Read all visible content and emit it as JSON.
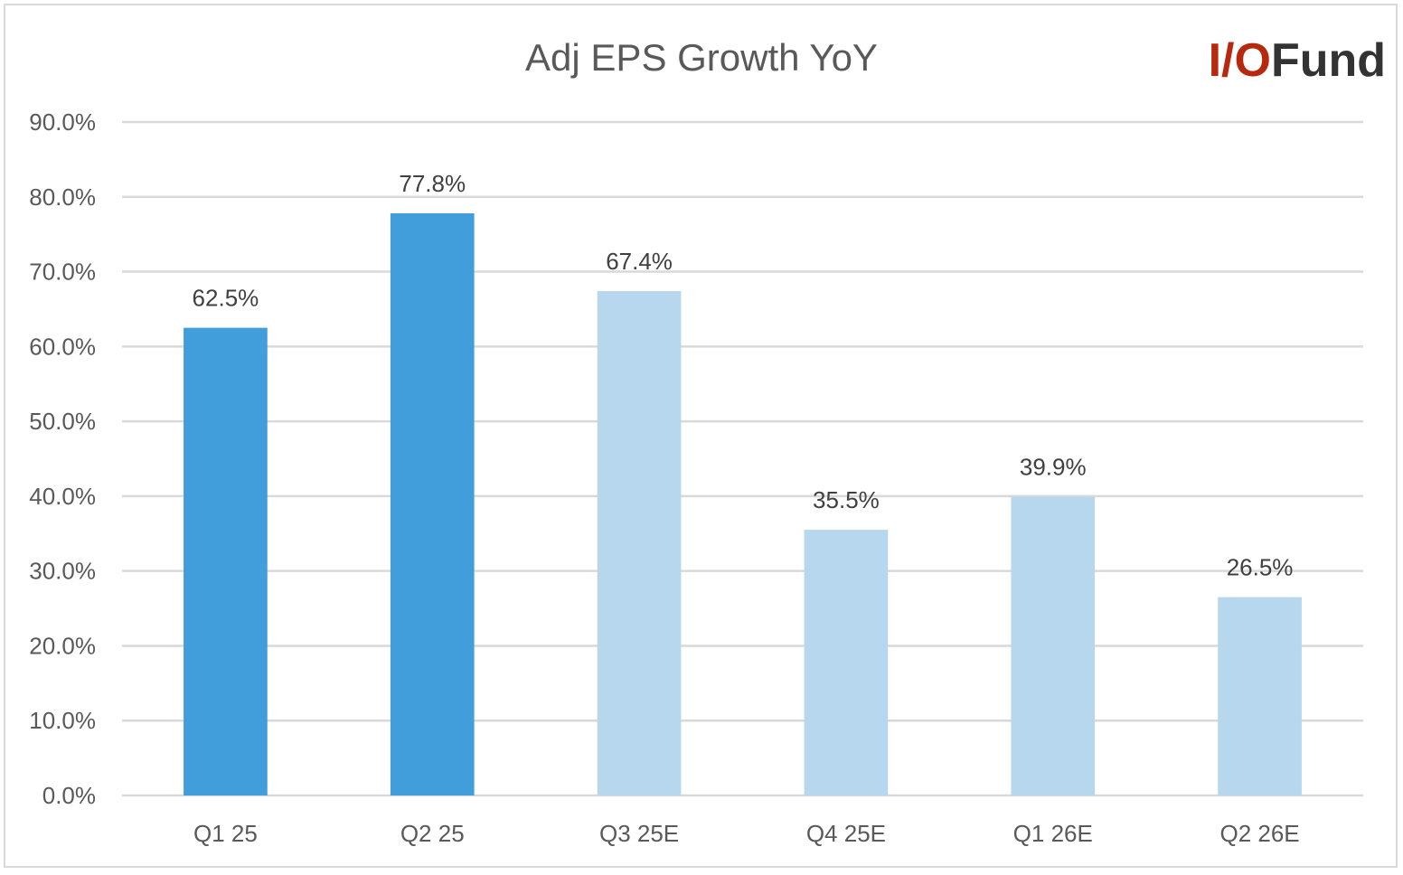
{
  "logo": {
    "text_accent": "I/O",
    "text_main": "Fund",
    "accent_color": "#b7290f",
    "main_color": "#333333"
  },
  "chart_data": {
    "type": "bar",
    "title": "Adj EPS Growth YoY",
    "xlabel": "",
    "ylabel": "",
    "categories": [
      "Q1 25",
      "Q2 25",
      "Q3 25E",
      "Q4 25E",
      "Q1 26E",
      "Q2 26E"
    ],
    "values": [
      62.5,
      77.8,
      67.4,
      35.5,
      39.9,
      26.5
    ],
    "data_labels": [
      "62.5%",
      "77.8%",
      "67.4%",
      "35.5%",
      "39.9%",
      "26.5%"
    ],
    "bar_colors": [
      "#429ddb",
      "#429ddb",
      "#b6d7ee",
      "#b6d7ee",
      "#b6d7ee",
      "#b6d7ee"
    ],
    "ylim": [
      0,
      90
    ],
    "y_ticks": [
      0,
      10,
      20,
      30,
      40,
      50,
      60,
      70,
      80,
      90
    ],
    "y_tick_labels": [
      "0.0%",
      "10.0%",
      "20.0%",
      "30.0%",
      "40.0%",
      "50.0%",
      "60.0%",
      "70.0%",
      "80.0%",
      "90.0%"
    ],
    "grid": true,
    "legend": "none"
  }
}
